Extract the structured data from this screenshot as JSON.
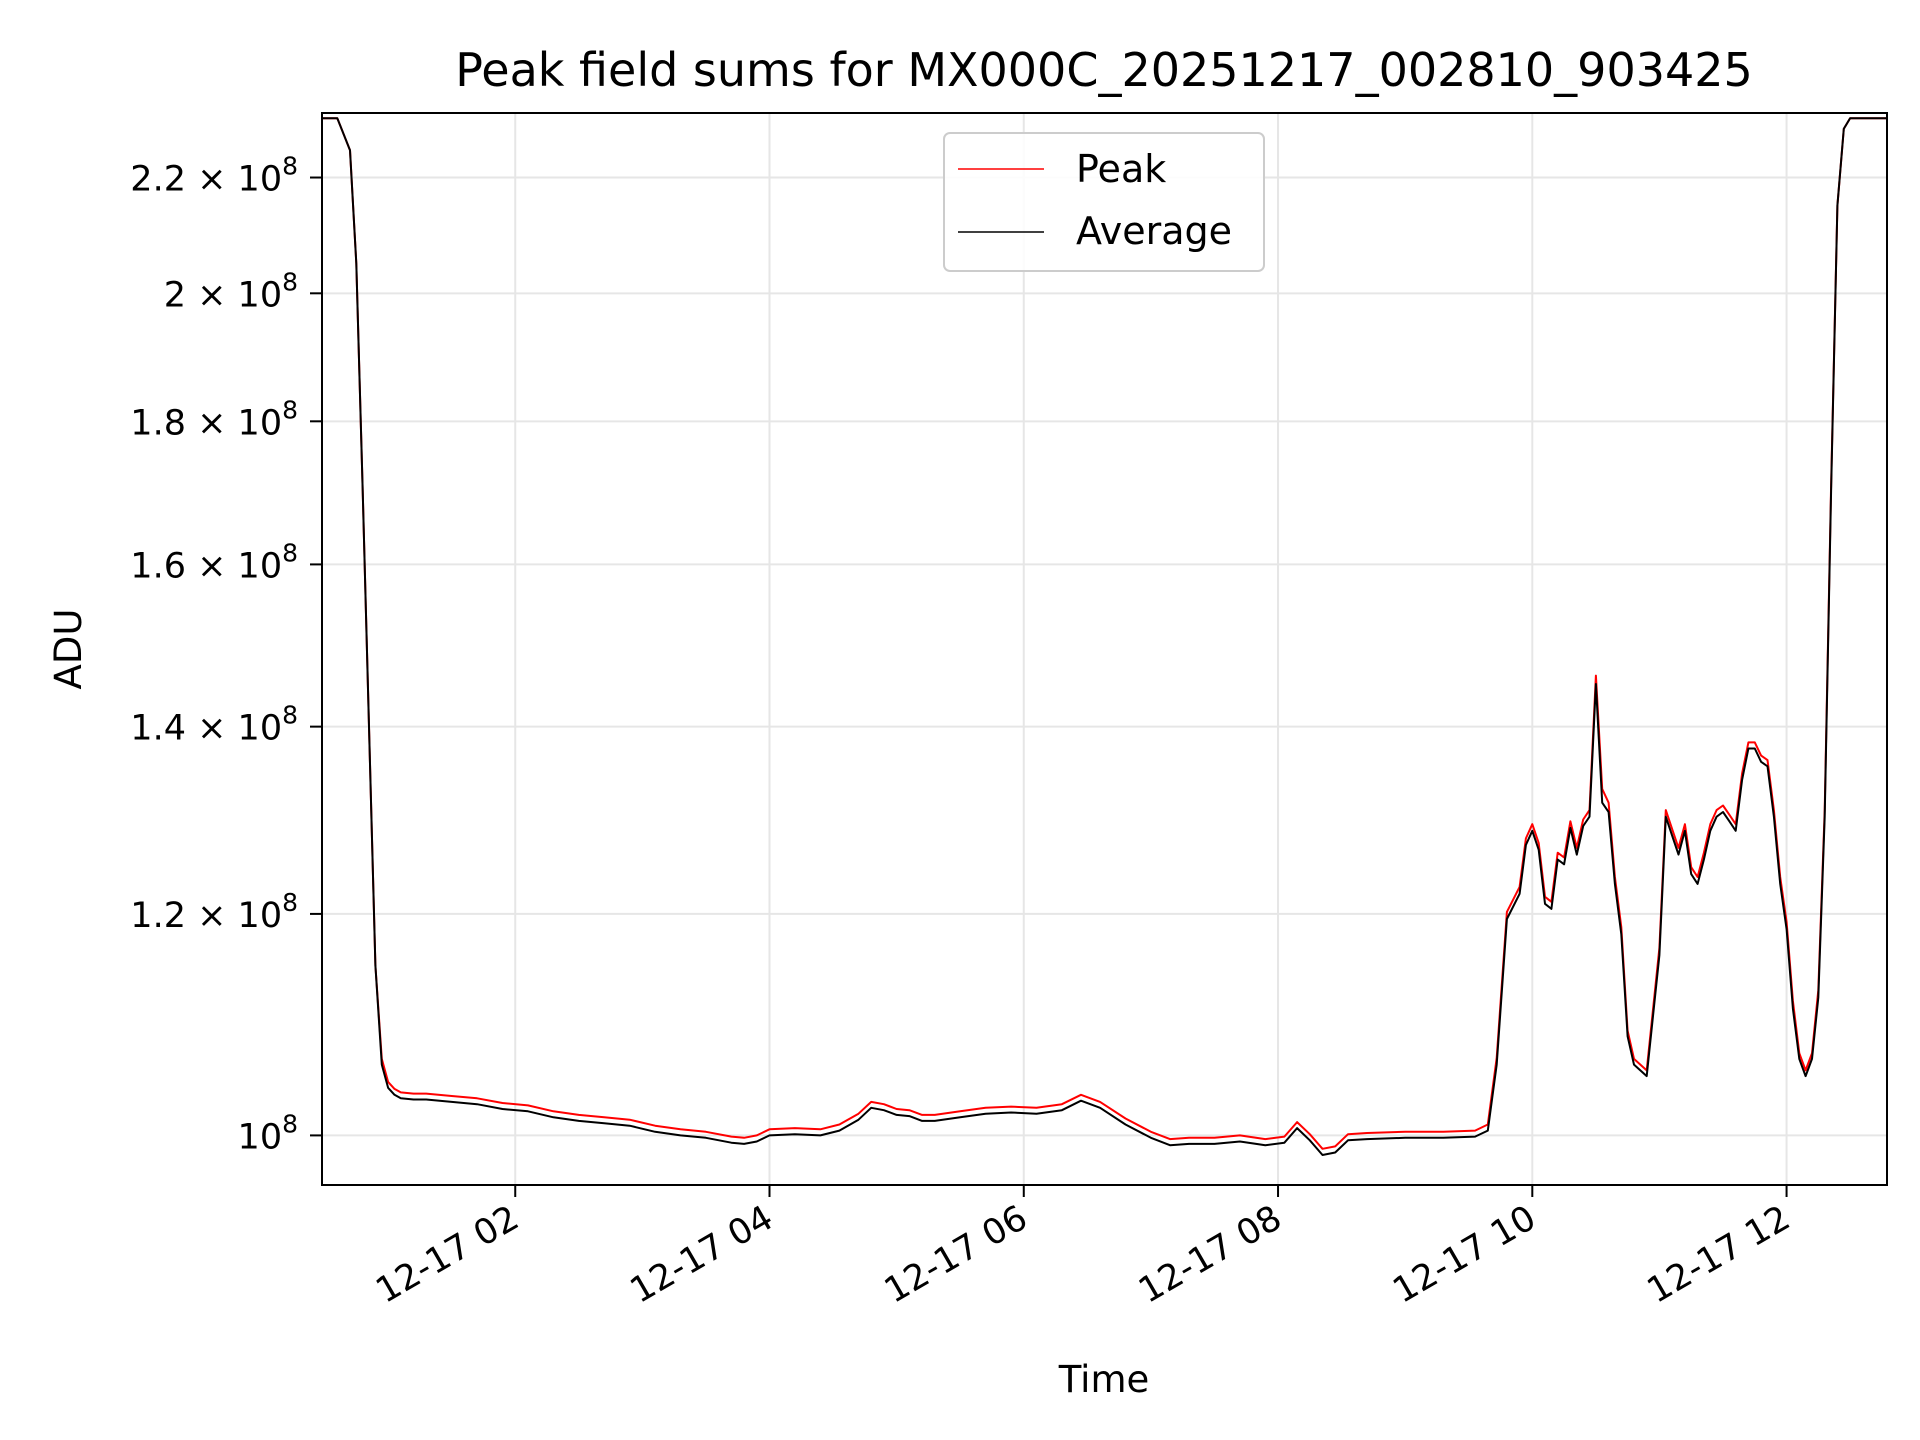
{
  "chart_data": {
    "type": "line",
    "title": "Peak field sums for MX000C_20251217_002810_903425",
    "xlabel": "Time",
    "ylabel": "ADU",
    "y_scale": "log",
    "x_unit": "hours since 12-17 00:00",
    "xlim": [
      0.48,
      12.79
    ],
    "ylim": [
      96000000,
      232000000
    ],
    "grid": true,
    "legend_position": "top-center",
    "x_ticks": [
      {
        "value": 2,
        "label": "12-17 02"
      },
      {
        "value": 4,
        "label": "12-17 04"
      },
      {
        "value": 6,
        "label": "12-17 06"
      },
      {
        "value": 8,
        "label": "12-17 08"
      },
      {
        "value": 10,
        "label": "12-17 10"
      },
      {
        "value": 12,
        "label": "12-17 12"
      }
    ],
    "y_ticks": [
      {
        "value": 100000000,
        "mantissa": "",
        "exponent": "8"
      },
      {
        "value": 120000000,
        "mantissa": "1.2",
        "exponent": "8"
      },
      {
        "value": 140000000,
        "mantissa": "1.4",
        "exponent": "8"
      },
      {
        "value": 160000000,
        "mantissa": "1.6",
        "exponent": "8"
      },
      {
        "value": 180000000,
        "mantissa": "1.8",
        "exponent": "8"
      },
      {
        "value": 200000000,
        "mantissa": "2",
        "exponent": "8"
      },
      {
        "value": 220000000,
        "mantissa": "2.2",
        "exponent": "8"
      }
    ],
    "series": [
      {
        "name": "Average",
        "color": "#000000",
        "x": [
          0.48,
          0.6,
          0.7,
          0.75,
          0.8,
          0.85,
          0.9,
          0.95,
          1.0,
          1.05,
          1.1,
          1.2,
          1.3,
          1.5,
          1.7,
          1.9,
          2.1,
          2.3,
          2.5,
          2.7,
          2.9,
          3.1,
          3.3,
          3.5,
          3.7,
          3.8,
          3.9,
          4.0,
          4.2,
          4.4,
          4.55,
          4.7,
          4.8,
          4.9,
          5.0,
          5.1,
          5.2,
          5.3,
          5.5,
          5.7,
          5.9,
          6.1,
          6.3,
          6.45,
          6.6,
          6.8,
          7.0,
          7.15,
          7.3,
          7.5,
          7.7,
          7.9,
          8.05,
          8.15,
          8.25,
          8.35,
          8.45,
          8.55,
          8.7,
          9.0,
          9.3,
          9.55,
          9.65,
          9.72,
          9.8,
          9.9,
          9.95,
          10.0,
          10.05,
          10.1,
          10.15,
          10.2,
          10.25,
          10.3,
          10.35,
          10.4,
          10.45,
          10.5,
          10.55,
          10.6,
          10.65,
          10.7,
          10.75,
          10.8,
          10.9,
          11.0,
          11.05,
          11.1,
          11.15,
          11.2,
          11.25,
          11.3,
          11.35,
          11.4,
          11.45,
          11.5,
          11.55,
          11.6,
          11.65,
          11.7,
          11.75,
          11.8,
          11.85,
          11.9,
          11.95,
          12.0,
          12.05,
          12.1,
          12.15,
          12.2,
          12.25,
          12.3,
          12.35,
          12.4,
          12.45,
          12.5,
          12.55,
          12.6,
          12.65,
          12.7,
          12.79
        ],
        "values": [
          231000000,
          231000000,
          225000000,
          205000000,
          170000000,
          140000000,
          115000000,
          106000000,
          104000000,
          103400000,
          103100000,
          103000000,
          103000000,
          102800000,
          102600000,
          102200000,
          102000000,
          101500000,
          101200000,
          101000000,
          100800000,
          100300000,
          100000000,
          99800000,
          99400000,
          99300000,
          99500000,
          100000000,
          100100000,
          100000000,
          100400000,
          101300000,
          102300000,
          102100000,
          101700000,
          101600000,
          101200000,
          101200000,
          101500000,
          101800000,
          101900000,
          101800000,
          102100000,
          102900000,
          102300000,
          100900000,
          99800000,
          99200000,
          99300000,
          99300000,
          99500000,
          99200000,
          99400000,
          100600000,
          99600000,
          98400000,
          98600000,
          99600000,
          99700000,
          99800000,
          99800000,
          99900000,
          100400000,
          106000000,
          119500000,
          122000000,
          127000000,
          128500000,
          126500000,
          121000000,
          120500000,
          125500000,
          125000000,
          128800000,
          126000000,
          129000000,
          130000000,
          145000000,
          131500000,
          130500000,
          123000000,
          118000000,
          108500000,
          106000000,
          105000000,
          116000000,
          130000000,
          128000000,
          126000000,
          128500000,
          124000000,
          123000000,
          125500000,
          128500000,
          130000000,
          130500000,
          129500000,
          128500000,
          134000000,
          137500000,
          137500000,
          136000000,
          135500000,
          130000000,
          123000000,
          118500000,
          111000000,
          106500000,
          105000000,
          106500000,
          112000000,
          130000000,
          170000000,
          215000000,
          229000000,
          231000000,
          231000000,
          231000000,
          231000000,
          231000000,
          231000000
        ]
      },
      {
        "name": "Peak",
        "color": "#ff0000",
        "x": [
          0.48,
          0.6,
          0.7,
          0.75,
          0.8,
          0.85,
          0.9,
          0.95,
          1.0,
          1.05,
          1.1,
          1.2,
          1.3,
          1.5,
          1.7,
          1.9,
          2.1,
          2.3,
          2.5,
          2.7,
          2.9,
          3.1,
          3.3,
          3.5,
          3.7,
          3.8,
          3.9,
          4.0,
          4.2,
          4.4,
          4.55,
          4.7,
          4.8,
          4.9,
          5.0,
          5.1,
          5.2,
          5.3,
          5.5,
          5.7,
          5.9,
          6.1,
          6.3,
          6.45,
          6.6,
          6.8,
          7.0,
          7.15,
          7.3,
          7.5,
          7.7,
          7.9,
          8.05,
          8.15,
          8.25,
          8.35,
          8.45,
          8.55,
          8.7,
          9.0,
          9.3,
          9.55,
          9.65,
          9.72,
          9.8,
          9.9,
          9.95,
          10.0,
          10.05,
          10.1,
          10.15,
          10.2,
          10.25,
          10.3,
          10.35,
          10.4,
          10.45,
          10.5,
          10.55,
          10.6,
          10.65,
          10.7,
          10.75,
          10.8,
          10.9,
          11.0,
          11.05,
          11.1,
          11.15,
          11.2,
          11.25,
          11.3,
          11.35,
          11.4,
          11.45,
          11.5,
          11.55,
          11.6,
          11.65,
          11.7,
          11.75,
          11.8,
          11.85,
          11.9,
          11.95,
          12.0,
          12.05,
          12.1,
          12.15,
          12.2,
          12.25,
          12.3,
          12.35,
          12.4,
          12.45,
          12.5,
          12.55,
          12.6,
          12.65,
          12.7,
          12.79
        ],
        "values": [
          231000000,
          231000000,
          225000000,
          205000000,
          170000000,
          140000000,
          115000000,
          106500000,
          104500000,
          103900000,
          103600000,
          103500000,
          103500000,
          103300000,
          103100000,
          102700000,
          102500000,
          102000000,
          101700000,
          101500000,
          101300000,
          100800000,
          100500000,
          100300000,
          99900000,
          99800000,
          100000000,
          100500000,
          100600000,
          100500000,
          100900000,
          101800000,
          102800000,
          102600000,
          102200000,
          102100000,
          101700000,
          101700000,
          102000000,
          102300000,
          102400000,
          102300000,
          102600000,
          103400000,
          102800000,
          101400000,
          100300000,
          99700000,
          99800000,
          99800000,
          100000000,
          99700000,
          99900000,
          101100000,
          100100000,
          98900000,
          99100000,
          100100000,
          100200000,
          100300000,
          100300000,
          100400000,
          100900000,
          106600000,
          120200000,
          122700000,
          127700000,
          129200000,
          127200000,
          121700000,
          121200000,
          126200000,
          125700000,
          129500000,
          126700000,
          129700000,
          130700000,
          146000000,
          133000000,
          131500000,
          123700000,
          118700000,
          109000000,
          106500000,
          105500000,
          116700000,
          130700000,
          128700000,
          126700000,
          129200000,
          124700000,
          123700000,
          126200000,
          129200000,
          130700000,
          131200000,
          130200000,
          129200000,
          134700000,
          138200000,
          138200000,
          136700000,
          136200000,
          130700000,
          123700000,
          119200000,
          111700000,
          107000000,
          105500000,
          107000000,
          112700000,
          130700000,
          170700000,
          215000000,
          229000000,
          231000000,
          231000000,
          231000000,
          231000000,
          231000000,
          231000000
        ]
      }
    ]
  }
}
